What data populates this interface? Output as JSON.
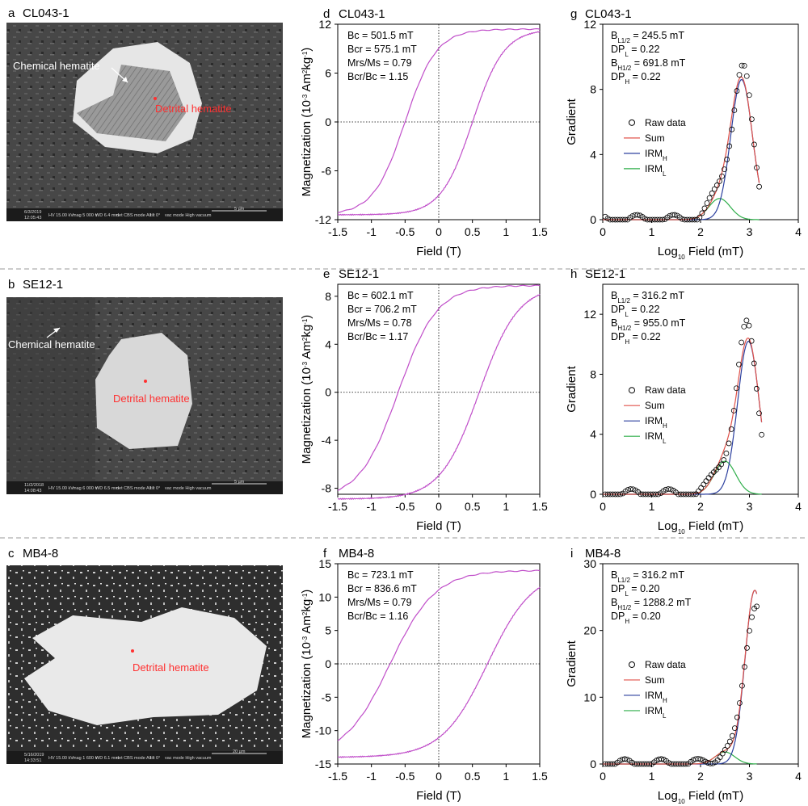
{
  "panels": [
    {
      "sem": {
        "letter": "a",
        "sample": "CL043-1",
        "chemical_label": "Chemical hematite",
        "detrital_label": "Detrital hematite",
        "bar_text": [
          "6/3/2019",
          "12:05:43",
          "HV 15.00 kV",
          "mag 5 000 x",
          "WD 6.4 mm",
          "det CBS",
          "mode All",
          "tilt 0°",
          "vac mode High vacuum"
        ],
        "scale_label": "5 µm"
      },
      "hyst": {
        "letter": "d",
        "sample": "CL043-1",
        "stats": [
          "Bc = 501.5 mT",
          "Bcr = 575.1 mT",
          "Mrs/Ms = 0.79",
          "Bcr/Bc = 1.15"
        ]
      },
      "irm": {
        "letter": "g",
        "sample": "CL043-1",
        "stats": [
          {
            "main": "B",
            "sub": "L1/2",
            "rest": " = 245.5 mT"
          },
          {
            "main": "DP",
            "sub": "L",
            "rest": " = 0.22"
          },
          {
            "main": "B",
            "sub": "H1/2",
            "rest": " = 691.8 mT"
          },
          {
            "main": "DP",
            "sub": "H",
            "rest": " = 0.22"
          }
        ],
        "legend": [
          {
            "main": "Raw data",
            "sub": ""
          },
          {
            "main": "Sum",
            "sub": ""
          },
          {
            "main": "IRM",
            "sub": "H"
          },
          {
            "main": "IRM",
            "sub": "L"
          }
        ]
      }
    },
    {
      "sem": {
        "letter": "b",
        "sample": "SE12-1",
        "chemical_label": "Chemical hematite",
        "detrital_label": "Detrital hematite",
        "bar_text": [
          "11/2/2018",
          "14:08:43",
          "HV 15.00 kV",
          "mag 6 000 x",
          "WD 6.5 mm",
          "det CBS",
          "mode All",
          "tilt 0°",
          "vac mode High vacuum"
        ],
        "scale_label": "5 µm"
      },
      "hyst": {
        "letter": "e",
        "sample": "SE12-1",
        "stats": [
          "Bc = 602.1 mT",
          "Bcr = 706.2 mT",
          "Mrs/Ms = 0.78",
          "Bcr/Bc = 1.17"
        ]
      },
      "irm": {
        "letter": "h",
        "sample": "SE12-1",
        "stats": [
          {
            "main": "B",
            "sub": "L1/2",
            "rest": " = 316.2 mT"
          },
          {
            "main": "DP",
            "sub": "L",
            "rest": " = 0.22"
          },
          {
            "main": "B",
            "sub": "H1/2",
            "rest": " = 955.0 mT"
          },
          {
            "main": "DP",
            "sub": "H",
            "rest": " = 0.22"
          }
        ],
        "legend": [
          {
            "main": "Raw data",
            "sub": ""
          },
          {
            "main": "Sum",
            "sub": ""
          },
          {
            "main": "IRM",
            "sub": "H"
          },
          {
            "main": "IRM",
            "sub": "L"
          }
        ]
      }
    },
    {
      "sem": {
        "letter": "c",
        "sample": "MB4-8",
        "chemical_label": "",
        "detrital_label": "Detrital hematite",
        "bar_text": [
          "5/16/2019",
          "14:33:51",
          "HV 15.00 kV",
          "mag 1 600 x",
          "WD 6.1 mm",
          "det CBS",
          "mode All",
          "tilt 0°",
          "vac mode High vacuum"
        ],
        "scale_label": "20 µm"
      },
      "hyst": {
        "letter": "f",
        "sample": "MB4-8",
        "stats": [
          "Bc = 723.1 mT",
          "Bcr = 836.6 mT",
          "Mrs/Ms = 0.79",
          "Bcr/Bc = 1.16"
        ]
      },
      "irm": {
        "letter": "i",
        "sample": "MB4-8",
        "stats": [
          {
            "main": "B",
            "sub": "L1/2",
            "rest": " = 316.2 mT"
          },
          {
            "main": "DP",
            "sub": "L",
            "rest": " = 0.20"
          },
          {
            "main": "B",
            "sub": "H1/2",
            "rest": " = 1288.2 mT"
          },
          {
            "main": "DP",
            "sub": "H",
            "rest": " = 0.20"
          }
        ],
        "legend": [
          {
            "main": "Raw data",
            "sub": ""
          },
          {
            "main": "Sum",
            "sub": ""
          },
          {
            "main": "IRM",
            "sub": "H"
          },
          {
            "main": "IRM",
            "sub": "L"
          }
        ]
      }
    }
  ],
  "colors": {
    "hysteresis": "#c04ec9",
    "sum": "#e0524a",
    "irm_h": "#2b3f9e",
    "irm_l": "#2fae4a",
    "raw": "#000000"
  },
  "chart_data": [
    {
      "id": "d",
      "type": "line",
      "title": "CL043-1",
      "xlabel": "Field (T)",
      "ylabel_main": "Magnetization (10",
      "ylabel_sup": "-3",
      "ylabel_tail": " Am",
      "ylabel_sup2": "2",
      "ylabel_end": "kg",
      "ylabel_sup3": "-1",
      "ylabel_close": ")",
      "xlim": [
        -1.5,
        1.5
      ],
      "ylim": [
        -12,
        12
      ],
      "xticks": [
        -1.5,
        -1,
        -0.5,
        0,
        0.5,
        1,
        1.5
      ],
      "xtick_labels": [
        "-1.5",
        "-1",
        "-0.5",
        "0",
        "0.5",
        "1",
        "1.5"
      ],
      "yticks": [
        -12,
        -6,
        0,
        6,
        12
      ],
      "ytick_labels": [
        "-12",
        "-6",
        "0",
        "6",
        "12"
      ],
      "Ms": 11.4,
      "Mrs_over_Ms": 0.79,
      "Bc": 0.5015,
      "Bcr": 0.5751
    },
    {
      "id": "e",
      "type": "line",
      "title": "SE12-1",
      "xlabel": "Field (T)",
      "ylabel_main": "Magnetization (10",
      "ylabel_sup": "-3",
      "ylabel_tail": " Am",
      "ylabel_sup2": "2",
      "ylabel_end": "kg",
      "ylabel_sup3": "-1",
      "ylabel_close": ")",
      "xlim": [
        -1.5,
        1.5
      ],
      "ylim": [
        -8.5,
        9
      ],
      "xticks": [
        -1.5,
        -1,
        -0.5,
        0,
        0.5,
        1,
        1.5
      ],
      "xtick_labels": [
        "-1.5",
        "-1",
        "-0.5",
        "0",
        "0.5",
        "1",
        "1.5"
      ],
      "yticks": [
        -8,
        -4,
        0,
        4,
        8
      ],
      "ytick_labels": [
        "-8",
        "-4",
        "0",
        "4",
        "8"
      ],
      "Ms": 8.9,
      "Mrs_over_Ms": 0.78,
      "Bc": 0.6021,
      "Bcr": 0.7062
    },
    {
      "id": "f",
      "type": "line",
      "title": "MB4-8",
      "xlabel": "Field (T)",
      "ylabel_main": "Magnetization (10",
      "ylabel_sup": "-3",
      "ylabel_tail": " Am",
      "ylabel_sup2": "2",
      "ylabel_end": "kg",
      "ylabel_sup3": "-1",
      "ylabel_close": ")",
      "xlim": [
        -1.5,
        1.5
      ],
      "ylim": [
        -15,
        15
      ],
      "xticks": [
        -1.5,
        -1,
        -0.5,
        0,
        0.5,
        1,
        1.5
      ],
      "xtick_labels": [
        "-1.5",
        "-1",
        "-0.5",
        "0",
        "0.5",
        "1",
        "1.5"
      ],
      "yticks": [
        -15,
        -10,
        -5,
        0,
        5,
        10,
        15
      ],
      "ytick_labels": [
        "-15",
        "-10",
        "-5",
        "0",
        "5",
        "10",
        "15"
      ],
      "Ms": 14.0,
      "Mrs_over_Ms": 0.79,
      "Bc": 0.7231,
      "Bcr": 0.8366
    },
    {
      "id": "g",
      "type": "scatter",
      "title": "CL043-1",
      "xlabel_pre": "Log",
      "xlabel_sub": "10",
      "xlabel_post": " Field (mT)",
      "ylabel": "Gradient",
      "xlim": [
        0,
        4
      ],
      "ylim": [
        0,
        12
      ],
      "xticks": [
        0,
        1,
        2,
        3,
        4
      ],
      "xtick_labels": [
        "0",
        "1",
        "2",
        "3",
        "4"
      ],
      "yticks": [
        0,
        4,
        8,
        12
      ],
      "ytick_labels": [
        "0",
        "4",
        "8",
        "12"
      ],
      "components": {
        "L": {
          "log_center": 2.39,
          "dp": 0.22,
          "peak": 1.3
        },
        "H": {
          "log_center": 2.84,
          "dp": 0.22,
          "peak": 8.6
        }
      },
      "x_max": 3.2
    },
    {
      "id": "h",
      "type": "scatter",
      "title": "SE12-1",
      "xlabel_pre": "Log",
      "xlabel_sub": "10",
      "xlabel_post": " Field (mT)",
      "ylabel": "Gradient",
      "xlim": [
        0,
        4
      ],
      "ylim": [
        0,
        14
      ],
      "xticks": [
        0,
        1,
        2,
        3,
        4
      ],
      "xtick_labels": [
        "0",
        "1",
        "2",
        "3",
        "4"
      ],
      "yticks": [
        0,
        4,
        8,
        12
      ],
      "ytick_labels": [
        "0",
        "4",
        "8",
        "12"
      ],
      "components": {
        "L": {
          "log_center": 2.5,
          "dp": 0.22,
          "peak": 2.2
        },
        "H": {
          "log_center": 2.98,
          "dp": 0.22,
          "peak": 10.2
        }
      },
      "x_max": 3.25
    },
    {
      "id": "i",
      "type": "scatter",
      "title": "MB4-8",
      "xlabel_pre": "Log",
      "xlabel_sub": "10",
      "xlabel_post": " Field (mT)",
      "ylabel": "Gradient",
      "xlim": [
        0,
        4
      ],
      "ylim": [
        0,
        30
      ],
      "xticks": [
        0,
        1,
        2,
        3,
        4
      ],
      "xtick_labels": [
        "0",
        "1",
        "2",
        "3",
        "4"
      ],
      "yticks": [
        0,
        10,
        20,
        30
      ],
      "ytick_labels": [
        "0",
        "10",
        "20",
        "30"
      ],
      "components": {
        "L": {
          "log_center": 2.5,
          "dp": 0.2,
          "peak": 1.8
        },
        "H": {
          "log_center": 3.11,
          "dp": 0.2,
          "peak": 26.0
        }
      },
      "x_max": 3.15
    }
  ]
}
